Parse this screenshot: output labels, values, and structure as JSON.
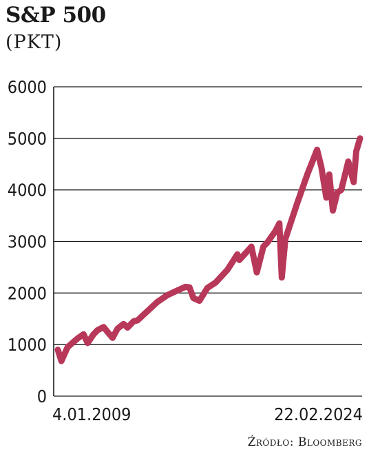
{
  "chart_data": {
    "type": "line",
    "title": "S&P 500",
    "subtitle": "(PKT)",
    "source": "Źródło: Bloomberg",
    "x_tick_labels": [
      "4.01.2009",
      "22.02.2024"
    ],
    "ylim": [
      0,
      6000
    ],
    "y_ticks": [
      0,
      1000,
      2000,
      3000,
      4000,
      5000,
      6000
    ],
    "grid": true,
    "line_color": "#b8385a",
    "series": [
      {
        "x": [
          2009.01,
          2009.19,
          2009.5,
          2010.0,
          2010.3,
          2010.5,
          2010.8,
          2011.0,
          2011.3,
          2011.6,
          2011.75,
          2012.0,
          2012.3,
          2012.5,
          2012.8,
          2013.0,
          2013.5,
          2014.0,
          2014.5,
          2015.0,
          2015.4,
          2015.6,
          2015.8,
          2016.1,
          2016.5,
          2016.9,
          2017.5,
          2018.0,
          2018.1,
          2018.7,
          2018.97,
          2019.3,
          2019.5,
          2019.9,
          2020.1,
          2020.22,
          2020.4,
          2020.7,
          2021.0,
          2021.5,
          2021.99,
          2022.2,
          2022.45,
          2022.6,
          2022.78,
          2023.0,
          2023.2,
          2023.55,
          2023.82,
          2023.95,
          2024.14
        ],
        "y": [
          900,
          680,
          950,
          1120,
          1200,
          1030,
          1200,
          1280,
          1340,
          1200,
          1130,
          1310,
          1400,
          1330,
          1450,
          1470,
          1650,
          1830,
          1960,
          2050,
          2120,
          2110,
          1900,
          1850,
          2100,
          2200,
          2450,
          2750,
          2640,
          2900,
          2400,
          2900,
          2980,
          3200,
          3350,
          2300,
          3050,
          3400,
          3750,
          4300,
          4780,
          4450,
          3850,
          4300,
          3600,
          3950,
          4000,
          4550,
          4150,
          4750,
          5000
        ]
      }
    ]
  }
}
